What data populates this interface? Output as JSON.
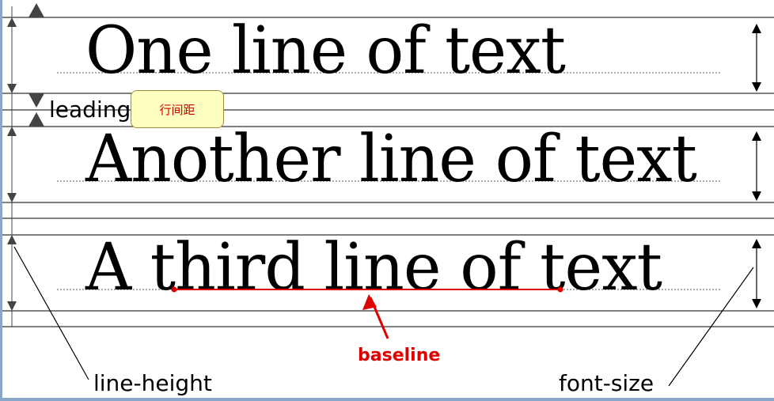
{
  "lines": [
    {
      "text": "One line of text"
    },
    {
      "text": "Another line of text"
    },
    {
      "text": "A third line of text"
    }
  ],
  "labels": {
    "leading": "leading",
    "leading_callout": "行间距",
    "baseline": "baseline",
    "line_height": "line-height",
    "font_size": "font-size"
  },
  "colors": {
    "guide_line": "#000000",
    "baseline_highlight": "#e00000",
    "callout_fill": "#ffffc0",
    "frame": "#8aa6c8"
  }
}
